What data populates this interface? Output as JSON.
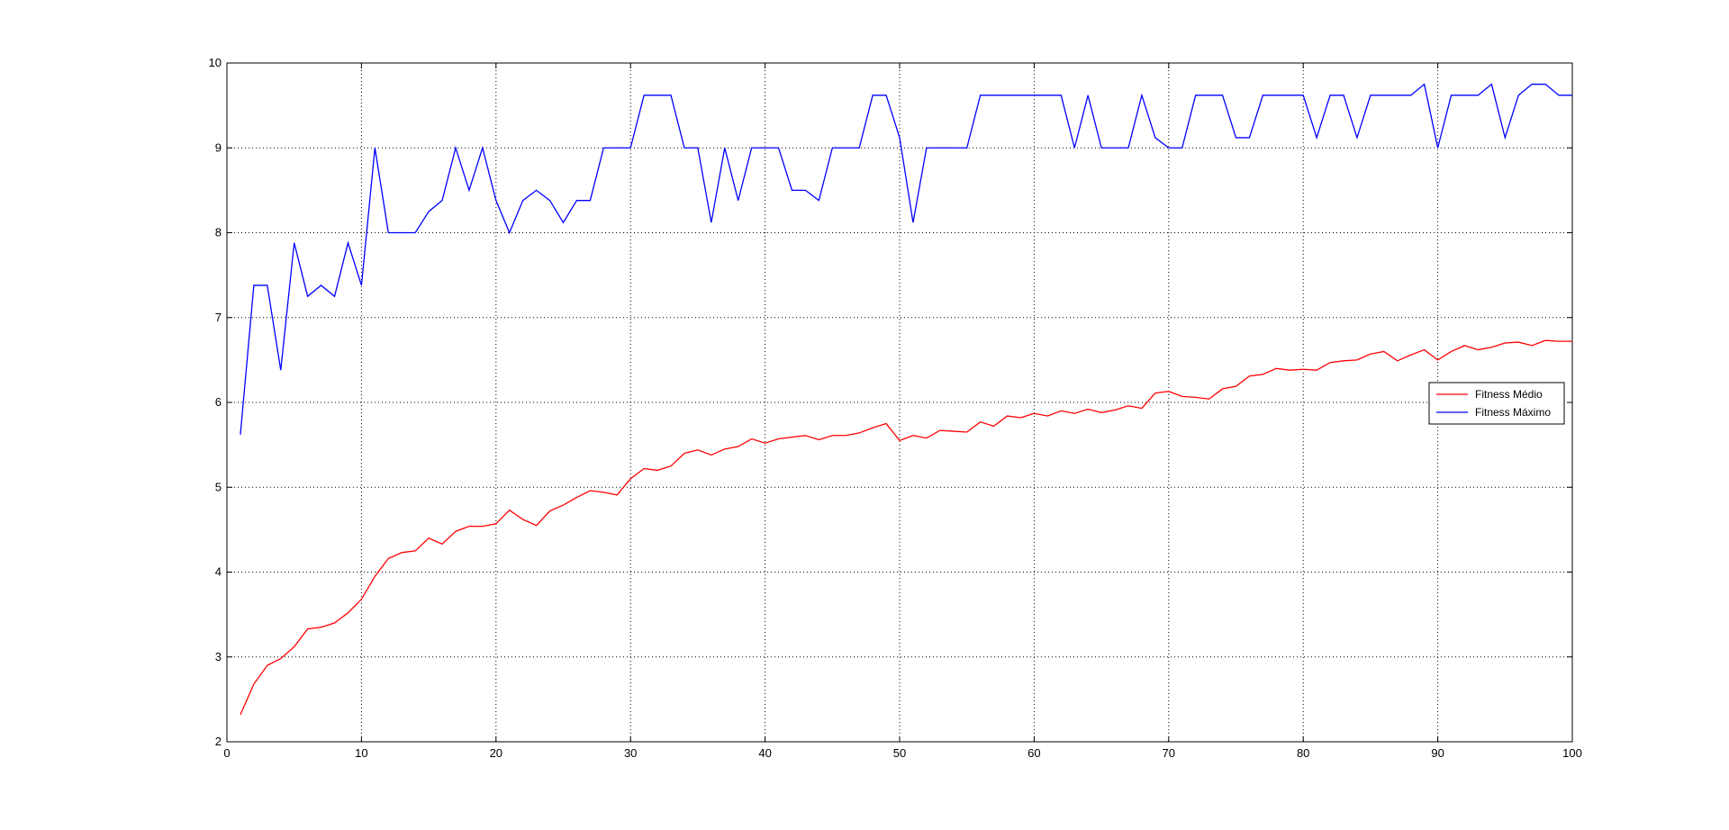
{
  "chart_data": {
    "type": "line",
    "title": "",
    "xlabel": "",
    "ylabel": "",
    "xlim": [
      0,
      100
    ],
    "ylim": [
      2,
      10
    ],
    "grid": true,
    "legend_position": "right",
    "xticks": [
      0,
      10,
      20,
      30,
      40,
      50,
      60,
      70,
      80,
      90,
      100
    ],
    "yticks": [
      2,
      3,
      4,
      5,
      6,
      7,
      8,
      9,
      10
    ],
    "xtick_labels": [
      "0",
      "10",
      "20",
      "30",
      "40",
      "50",
      "60",
      "70",
      "80",
      "90",
      "100"
    ],
    "ytick_labels": [
      "2",
      "3",
      "4",
      "5",
      "6",
      "7",
      "8",
      "9",
      "10"
    ],
    "x": [
      1,
      2,
      3,
      4,
      5,
      6,
      7,
      8,
      9,
      10,
      11,
      12,
      13,
      14,
      15,
      16,
      17,
      18,
      19,
      20,
      21,
      22,
      23,
      24,
      25,
      26,
      27,
      28,
      29,
      30,
      31,
      32,
      33,
      34,
      35,
      36,
      37,
      38,
      39,
      40,
      41,
      42,
      43,
      44,
      45,
      46,
      47,
      48,
      49,
      50,
      51,
      52,
      53,
      54,
      55,
      56,
      57,
      58,
      59,
      60,
      61,
      62,
      63,
      64,
      65,
      66,
      67,
      68,
      69,
      70,
      71,
      72,
      73,
      74,
      75,
      76,
      77,
      78,
      79,
      80,
      81,
      82,
      83,
      84,
      85,
      86,
      87,
      88,
      89,
      90,
      91,
      92,
      93,
      94,
      95,
      96,
      97,
      98,
      99,
      100
    ],
    "series": [
      {
        "name": "Fitness Médio",
        "color": "#ff0000",
        "values": [
          2.32,
          2.68,
          2.9,
          2.98,
          3.12,
          3.33,
          3.35,
          3.4,
          3.52,
          3.68,
          3.95,
          4.16,
          4.23,
          4.25,
          4.4,
          4.33,
          4.48,
          4.54,
          4.54,
          4.57,
          4.73,
          4.62,
          4.55,
          4.72,
          4.79,
          4.88,
          4.96,
          4.94,
          4.91,
          5.1,
          5.22,
          5.2,
          5.25,
          5.4,
          5.44,
          5.38,
          5.45,
          5.48,
          5.57,
          5.52,
          5.57,
          5.59,
          5.61,
          5.56,
          5.61,
          5.61,
          5.64,
          5.7,
          5.75,
          5.55,
          5.61,
          5.58,
          5.67,
          5.66,
          5.65,
          5.77,
          5.72,
          5.84,
          5.82,
          5.87,
          5.84,
          5.9,
          5.87,
          5.92,
          5.88,
          5.91,
          5.96,
          5.93,
          6.11,
          6.13,
          6.07,
          6.06,
          6.04,
          6.16,
          6.19,
          6.31,
          6.33,
          6.4,
          6.38,
          6.39,
          6.38,
          6.47,
          6.49,
          6.5,
          6.57,
          6.6,
          6.49,
          6.56,
          6.62,
          6.5,
          6.6,
          6.67,
          6.62,
          6.65,
          6.7,
          6.71,
          6.67,
          6.73,
          6.72,
          6.72
        ]
      },
      {
        "name": "Fitness Máximo",
        "color": "#0000ff",
        "values": [
          5.62,
          7.38,
          7.38,
          6.38,
          7.88,
          7.25,
          7.38,
          7.25,
          7.88,
          7.38,
          9.0,
          8.0,
          8.0,
          8.0,
          8.25,
          8.38,
          9.0,
          8.5,
          9.0,
          8.38,
          8.0,
          8.38,
          8.5,
          8.38,
          8.12,
          8.38,
          8.38,
          9.0,
          9.0,
          9.0,
          9.62,
          9.62,
          9.62,
          9.0,
          9.0,
          8.12,
          9.0,
          8.38,
          9.0,
          9.0,
          9.0,
          8.5,
          8.5,
          8.38,
          9.0,
          9.0,
          9.0,
          9.62,
          9.62,
          9.12,
          8.12,
          9.0,
          9.0,
          9.0,
          9.0,
          9.62,
          9.62,
          9.62,
          9.62,
          9.62,
          9.62,
          9.62,
          9.0,
          9.62,
          9.0,
          9.0,
          9.0,
          9.62,
          9.12,
          9.0,
          9.0,
          9.62,
          9.62,
          9.62,
          9.12,
          9.12,
          9.62,
          9.62,
          9.62,
          9.62,
          9.12,
          9.62,
          9.62,
          9.12,
          9.62,
          9.62,
          9.62,
          9.62,
          9.75,
          9.0,
          9.62,
          9.62,
          9.62,
          9.75,
          9.12,
          9.62,
          9.75,
          9.75,
          9.62,
          9.62
        ]
      }
    ]
  }
}
